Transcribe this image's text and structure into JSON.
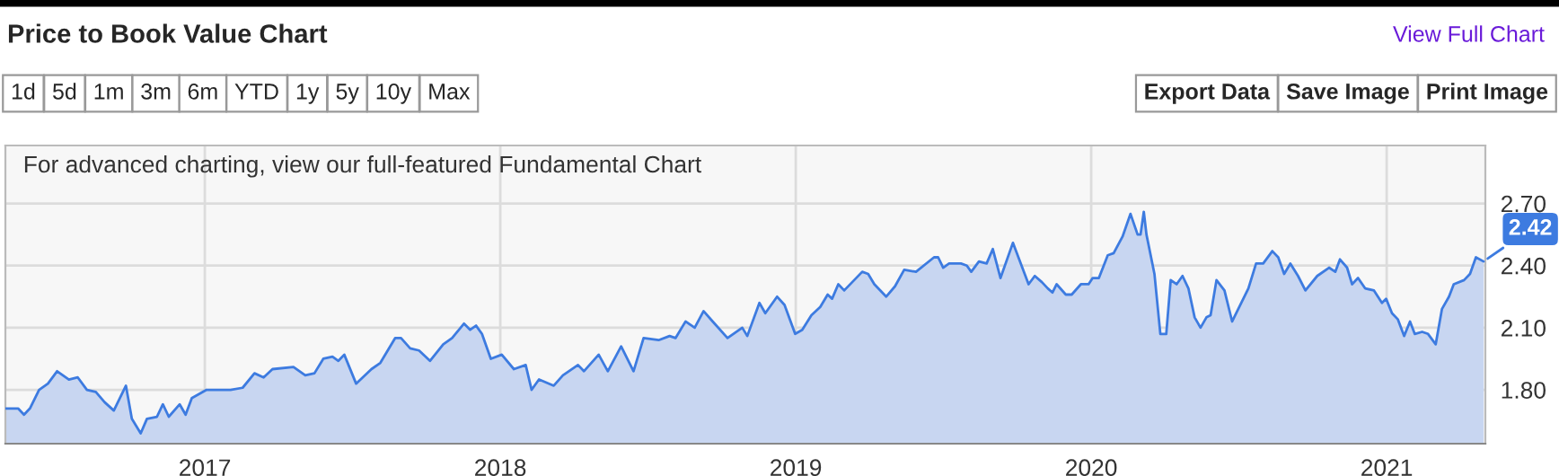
{
  "chart_data": {
    "type": "area",
    "title": "Price to Book Value Chart",
    "annotations": [
      "For advanced charting, view our full-featured Fundamental Chart",
      "View Full Chart",
      "1d",
      "5d",
      "1m",
      "3m",
      "6m",
      "YTD",
      "1y",
      "5y",
      "10y",
      "Max",
      "Export Data",
      "Save Image",
      "Print Image",
      {
        "text": "2.42",
        "x": 2021.328,
        "y": 2.42
      }
    ],
    "series": [
      {
        "color": "#3d7be0",
        "x": [
          2016.327,
          2016.368,
          2016.388,
          2016.408,
          2016.439,
          2016.469,
          2016.5,
          2016.54,
          2016.57,
          2016.601,
          2016.631,
          2016.661,
          2016.692,
          2016.733,
          2016.753,
          2016.783,
          2016.804,
          2016.838,
          2016.858,
          2016.878,
          2016.915,
          2016.935,
          2016.956,
          2017.006,
          2017.047,
          2017.087,
          2017.128,
          2017.168,
          2017.199,
          2017.229,
          2017.3,
          2017.34,
          2017.371,
          2017.401,
          2017.432,
          2017.452,
          2017.472,
          2017.512,
          2017.564,
          2017.594,
          2017.644,
          2017.664,
          2017.695,
          2017.725,
          2017.762,
          2017.807,
          2017.837,
          2017.877,
          2017.898,
          2017.918,
          2017.938,
          2017.968,
          2018.005,
          2018.046,
          2018.086,
          2018.106,
          2018.131,
          2018.181,
          2018.212,
          2018.263,
          2018.283,
          2018.333,
          2018.364,
          2018.409,
          2018.451,
          2018.485,
          2018.536,
          2018.573,
          2018.593,
          2018.627,
          2018.658,
          2018.688,
          2018.719,
          2018.769,
          2018.819,
          2018.836,
          2018.877,
          2018.897,
          2018.937,
          2018.962,
          2018.998,
          2019.022,
          2019.053,
          2019.083,
          2019.108,
          2019.123,
          2019.144,
          2019.164,
          2019.225,
          2019.245,
          2019.266,
          2019.306,
          2019.336,
          2019.367,
          2019.407,
          2019.468,
          2019.482,
          2019.499,
          2019.519,
          2019.559,
          2019.579,
          2019.594,
          2019.62,
          2019.646,
          2019.667,
          2019.693,
          2019.735,
          2019.788,
          2019.809,
          2019.833,
          2019.853,
          2019.869,
          2019.883,
          2019.914,
          2019.934,
          2019.965,
          2019.991,
          2020.005,
          2020.026,
          2020.056,
          2020.076,
          2020.106,
          2020.133,
          2020.157,
          2020.167,
          2020.178,
          2020.187,
          2020.214,
          2020.234,
          2020.254,
          2020.269,
          2020.289,
          2020.309,
          2020.329,
          2020.35,
          2020.37,
          2020.39,
          2020.404,
          2020.424,
          2020.451,
          2020.477,
          2020.532,
          2020.558,
          2020.582,
          2020.613,
          2020.633,
          2020.653,
          2020.674,
          2020.7,
          2020.725,
          2020.765,
          2020.805,
          2020.826,
          2020.842,
          2020.866,
          2020.883,
          2020.903,
          2020.927,
          2020.957,
          2020.984,
          2020.998,
          2021.018,
          2021.038,
          2021.059,
          2021.079,
          2021.095,
          2021.12,
          2021.14,
          2021.166,
          2021.187,
          2021.211,
          2021.227,
          2021.262,
          2021.282,
          2021.302,
          2021.328
        ],
        "values": [
          1.71,
          1.71,
          1.68,
          1.71,
          1.8,
          1.83,
          1.89,
          1.85,
          1.86,
          1.8,
          1.79,
          1.74,
          1.7,
          1.82,
          1.66,
          1.59,
          1.66,
          1.67,
          1.73,
          1.67,
          1.73,
          1.68,
          1.76,
          1.8,
          1.8,
          1.8,
          1.81,
          1.88,
          1.86,
          1.9,
          1.91,
          1.87,
          1.88,
          1.95,
          1.96,
          1.94,
          1.97,
          1.83,
          1.9,
          1.93,
          2.05,
          2.05,
          2.0,
          1.99,
          1.94,
          2.02,
          2.05,
          2.12,
          2.09,
          2.11,
          2.07,
          1.95,
          1.97,
          1.9,
          1.92,
          1.8,
          1.85,
          1.82,
          1.87,
          1.92,
          1.89,
          1.97,
          1.89,
          2.01,
          1.89,
          2.05,
          2.04,
          2.06,
          2.05,
          2.13,
          2.1,
          2.18,
          2.13,
          2.05,
          2.1,
          2.06,
          2.22,
          2.17,
          2.25,
          2.21,
          2.07,
          2.09,
          2.16,
          2.2,
          2.26,
          2.24,
          2.31,
          2.28,
          2.37,
          2.36,
          2.31,
          2.25,
          2.3,
          2.38,
          2.37,
          2.44,
          2.44,
          2.39,
          2.41,
          2.41,
          2.4,
          2.37,
          2.42,
          2.41,
          2.48,
          2.34,
          2.51,
          2.31,
          2.35,
          2.32,
          2.29,
          2.27,
          2.31,
          2.26,
          2.26,
          2.31,
          2.31,
          2.34,
          2.34,
          2.45,
          2.46,
          2.54,
          2.65,
          2.55,
          2.55,
          2.66,
          2.55,
          2.36,
          2.07,
          2.07,
          2.33,
          2.31,
          2.35,
          2.29,
          2.15,
          2.1,
          2.15,
          2.16,
          2.33,
          2.28,
          2.13,
          2.29,
          2.41,
          2.41,
          2.47,
          2.44,
          2.36,
          2.41,
          2.35,
          2.28,
          2.35,
          2.39,
          2.37,
          2.43,
          2.39,
          2.31,
          2.34,
          2.29,
          2.28,
          2.22,
          2.24,
          2.17,
          2.14,
          2.06,
          2.13,
          2.07,
          2.08,
          2.07,
          2.02,
          2.19,
          2.25,
          2.31,
          2.33,
          2.36,
          2.44,
          2.42
        ]
      }
    ],
    "xlim": [
      2016.325,
      2021.334
    ],
    "xticks": [
      2017,
      2018,
      2019,
      2020,
      2021
    ],
    "ylim": [
      1.54,
      2.98
    ],
    "yticks": [
      {
        "value": 1.8,
        "label": "1.80"
      },
      {
        "value": 2.1,
        "label": "2.10"
      },
      {
        "value": 2.4,
        "label": "2.40"
      },
      {
        "value": 2.7,
        "label": "2.70"
      }
    ],
    "grid": true
  }
}
